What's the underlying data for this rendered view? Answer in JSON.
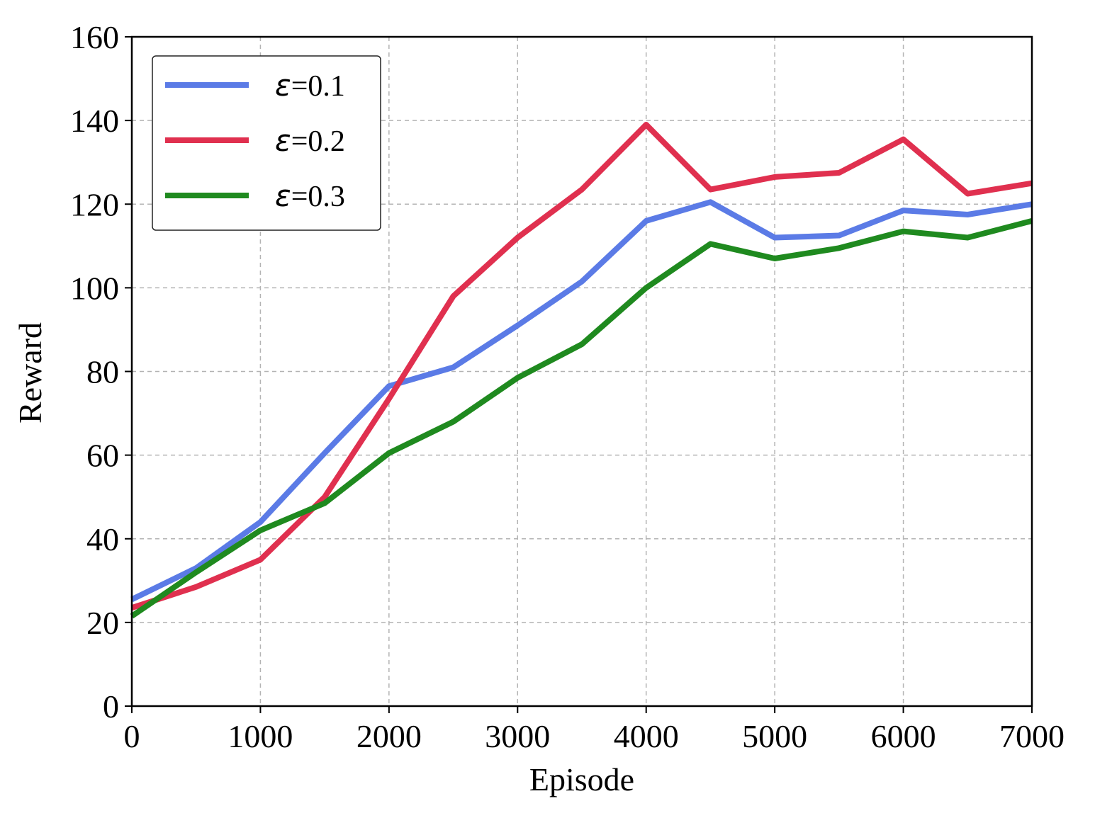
{
  "chart_data": {
    "type": "line",
    "title": "",
    "xlabel": "Episode",
    "ylabel": "Reward",
    "xlim": [
      0,
      7000
    ],
    "ylim": [
      0,
      160
    ],
    "xticks": [
      0,
      1000,
      2000,
      3000,
      4000,
      5000,
      6000,
      7000
    ],
    "yticks": [
      0,
      20,
      40,
      60,
      80,
      100,
      120,
      140,
      160
    ],
    "xtick_labels": [
      "0",
      "1000",
      "2000",
      "3000",
      "4000",
      "5000",
      "6000",
      "7000"
    ],
    "ytick_labels": [
      "0",
      "20",
      "40",
      "60",
      "80",
      "100",
      "120",
      "140",
      "160"
    ],
    "grid": true,
    "legend_position": "top-left",
    "x": [
      0,
      500,
      1000,
      1500,
      2000,
      2500,
      3000,
      3500,
      4000,
      4500,
      5000,
      5500,
      6000,
      6500,
      7000
    ],
    "series": [
      {
        "name": "ε=0.1",
        "legend_symbol": "ε",
        "legend_value": "=0.1",
        "color": "#5b7be6",
        "values": [
          25.5,
          33,
          44,
          60.5,
          76.5,
          81,
          91,
          101.5,
          116,
          120.5,
          112,
          112.5,
          118.5,
          117.5,
          120
        ]
      },
      {
        "name": "ε=0.2",
        "legend_symbol": "ε",
        "legend_value": "=0.2",
        "color": "#e0304f",
        "values": [
          23.5,
          28.5,
          35,
          50,
          73.5,
          98,
          112,
          123.5,
          139,
          123.5,
          126.5,
          127.5,
          135.5,
          122.5,
          125
        ]
      },
      {
        "name": "ε=0.3",
        "legend_symbol": "ε",
        "legend_value": "=0.3",
        "color": "#1f8a1f",
        "values": [
          21.5,
          32,
          42,
          48.5,
          60.5,
          68,
          78.5,
          86.5,
          100,
          110.5,
          107,
          109.5,
          113.5,
          112,
          116
        ]
      }
    ]
  }
}
